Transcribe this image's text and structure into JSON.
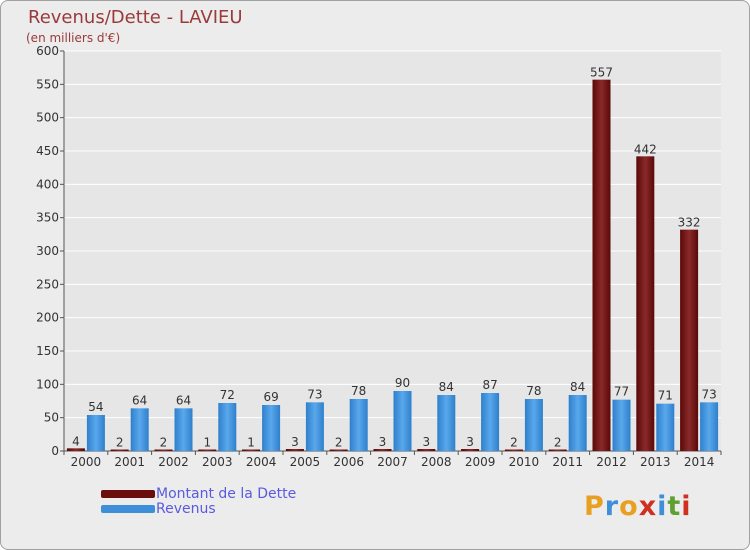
{
  "title": "Revenus/Dette - LAVIEU",
  "subtitle": "(en milliers d'€)",
  "colors": {
    "dette": "#6b0d0d",
    "revenus": "#3d8fd9",
    "title": "#9a3a3a",
    "legend_text": "#5a5ae0"
  },
  "logo": {
    "letters": [
      "P",
      "r",
      "o",
      "x",
      "i",
      "t",
      "i"
    ],
    "colors": [
      "#e8a020",
      "#3d8fd9",
      "#e8a020",
      "#d03020",
      "#3d8fd9",
      "#60a030",
      "#d03020"
    ]
  },
  "chart_data": {
    "type": "bar",
    "title": "Revenus/Dette - LAVIEU",
    "ylabel": "(en milliers d'€)",
    "xlabel": "",
    "categories": [
      "2000",
      "2001",
      "2002",
      "2003",
      "2004",
      "2005",
      "2006",
      "2007",
      "2008",
      "2009",
      "2010",
      "2011",
      "2012",
      "2013",
      "2014"
    ],
    "series": [
      {
        "name": "Montant de la Dette",
        "values": [
          4,
          2,
          2,
          1,
          1,
          3,
          2,
          3,
          3,
          3,
          2,
          2,
          557,
          442,
          332
        ]
      },
      {
        "name": "Revenus",
        "values": [
          54,
          64,
          64,
          72,
          69,
          73,
          78,
          90,
          84,
          87,
          78,
          84,
          77,
          71,
          73
        ]
      }
    ],
    "ylim": [
      0,
      600
    ],
    "yticks": [
      0,
      50,
      100,
      150,
      200,
      250,
      300,
      350,
      400,
      450,
      500,
      550,
      600
    ],
    "grid": true,
    "legend_position": "bottom-left"
  }
}
